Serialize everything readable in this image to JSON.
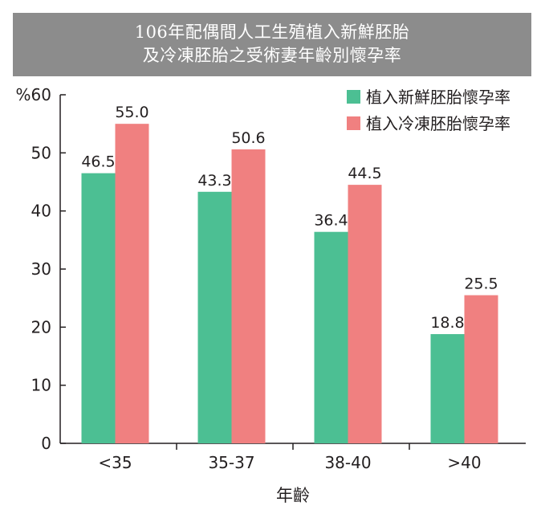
{
  "title": {
    "line1": "106年配偶間人工生殖植入新鮮胚胎",
    "line2": "及冷凍胚胎之受術妻年齡別懷孕率"
  },
  "chart_data": {
    "type": "bar",
    "categories": [
      "<35",
      "35-37",
      "38-40",
      ">40"
    ],
    "series": [
      {
        "name": "植入新鮮胚胎懷孕率",
        "color": "#4cbf93",
        "values": [
          46.5,
          43.3,
          36.4,
          18.8
        ],
        "labels": [
          "46.5",
          "43.3",
          "36.4",
          "18.8"
        ]
      },
      {
        "name": "植入冷凍胚胎懷孕率",
        "color": "#f08080",
        "values": [
          55.0,
          50.6,
          44.5,
          25.5
        ],
        "labels": [
          "55.0",
          "50.6",
          "44.5",
          "25.5"
        ]
      }
    ],
    "ylabel": "%",
    "xlabel": "年齡",
    "ylim": [
      0,
      60
    ],
    "yticks": [
      0,
      10,
      20,
      30,
      40,
      50,
      60
    ],
    "ytick_labels": [
      "0",
      "10",
      "20",
      "30",
      "40",
      "50",
      "60"
    ],
    "grid": false,
    "legend_position": "top-right"
  }
}
